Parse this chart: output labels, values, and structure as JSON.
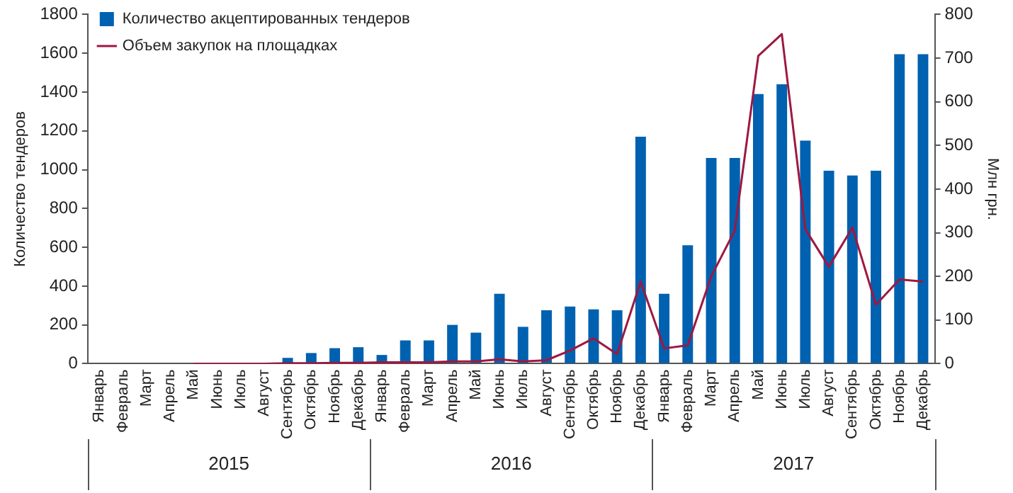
{
  "chart_data": {
    "type": "bar",
    "ylabel": "Количество тендеров",
    "y2label": "Млн грн.",
    "categories": [
      "Январь",
      "Февраль",
      "Март",
      "Апрель",
      "Май",
      "Июнь",
      "Июль",
      "Август",
      "Сентябрь",
      "Октябрь",
      "Ноябрь",
      "Декабрь",
      "Январь",
      "Февраль",
      "Март",
      "Апрель",
      "Май",
      "Июнь",
      "Июль",
      "Август",
      "Сентябрь",
      "Октябрь",
      "Ноябрь",
      "Декабрь",
      "Январь",
      "Февраль",
      "Март",
      "Апрель",
      "Май",
      "Июнь",
      "Июль",
      "Август",
      "Сентябрь",
      "Октябрь",
      "Ноябрь",
      "Декабрь"
    ],
    "series": [
      {
        "name": "Количество акцептированных тендеров",
        "color": "#0061b0",
        "values": [
          0,
          0,
          0,
          0,
          0,
          0,
          0,
          0,
          30,
          55,
          80,
          85,
          45,
          120,
          120,
          200,
          160,
          360,
          190,
          275,
          295,
          280,
          275,
          1170,
          360,
          610,
          1060,
          1060,
          1390,
          1440,
          1150,
          995,
          970,
          995,
          1595,
          1595
        ]
      },
      {
        "name": "Объем закупок на площадках",
        "type": "line",
        "axis": "y2",
        "color": "#9e1840",
        "values": [
          null,
          null,
          null,
          null,
          0,
          0,
          0,
          0,
          1,
          1,
          2,
          2,
          3,
          3,
          3,
          5,
          5,
          10,
          5,
          8,
          30,
          58,
          22,
          188,
          35,
          42,
          200,
          305,
          705,
          755,
          308,
          222,
          312,
          135,
          193,
          188
        ]
      }
    ],
    "ylim": [
      0,
      1800
    ],
    "yticks": [
      0,
      200,
      400,
      600,
      800,
      1000,
      1200,
      1400,
      1600,
      1800
    ],
    "y2lim": [
      0,
      800
    ],
    "y2ticks": [
      0,
      100,
      200,
      300,
      400,
      500,
      600,
      700,
      800
    ],
    "annotations": [
      "2015",
      "2016",
      "2017"
    ],
    "grid": false,
    "legend": "top left",
    "marker": "none",
    "line_style": "solid"
  }
}
